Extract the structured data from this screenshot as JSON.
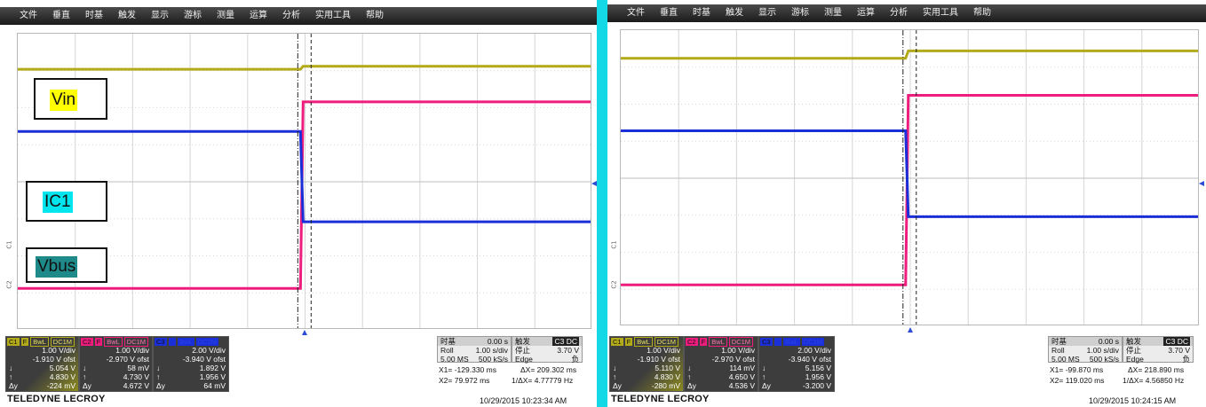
{
  "menu": [
    "文件",
    "垂直",
    "时基",
    "触发",
    "显示",
    "游标",
    "测量",
    "运算",
    "分析",
    "实用工具",
    "帮助"
  ],
  "colors": {
    "ch1": "#b2aa19",
    "ch2": "#ee1c7d",
    "ch3": "#1a2fd8",
    "divider": "#14d8e6",
    "label_yellow": "#ffff00",
    "label_cyan": "#00e5ee",
    "label_teal": "#1f8a8a"
  },
  "scopes": [
    {
      "labels": {
        "vin": "Vin",
        "ic1": "IC1",
        "vbus": "Vbus"
      },
      "markers": {
        "c1": "C1",
        "c2": "C2"
      },
      "traces": {
        "ch1": {
          "before": 0.12,
          "after": 0.11
        },
        "ch2": {
          "before": 0.86,
          "after": 0.23
        },
        "ch3": {
          "before": 0.33,
          "after": 0.635
        },
        "edge_x": 0.492
      },
      "channels": [
        {
          "id": "C1",
          "flags": [
            "F",
            "BwL",
            "DC1M"
          ],
          "vdiv": "1.00 V/div",
          "offset": "-1.910 V ofst",
          "lower": {
            "sym": "↓",
            "val": "5.054 V"
          },
          "upper": {
            "sym": "↑",
            "val": "4.830 V"
          },
          "delta": {
            "sym": "Δy",
            "val": "-224 mV"
          }
        },
        {
          "id": "C2",
          "flags": [
            "F",
            "BwL",
            "DC1M"
          ],
          "vdiv": "1.00 V/div",
          "offset": "-2.970 V ofst",
          "lower": {
            "sym": "↓",
            "val": "58 mV"
          },
          "upper": {
            "sym": "↑",
            "val": "4.730 V"
          },
          "delta": {
            "sym": "Δy",
            "val": "4.672 V"
          }
        },
        {
          "id": "C3",
          "flags": [
            "F",
            "BwL",
            "DC1M"
          ],
          "vdiv": "2.00 V/div",
          "offset": "-3.940 V ofst",
          "lower": {
            "sym": "↓",
            "val": "1.892 V"
          },
          "upper": {
            "sym": "↑",
            "val": "1.956 V"
          },
          "delta": {
            "sym": "Δy",
            "val": "64 mV"
          }
        }
      ],
      "timebase": {
        "title": "时基",
        "offset": "0.00 s",
        "mode": "Roll",
        "tdiv": "1.00 s/div",
        "samples": "5.00 MS",
        "rate": "500 kS/s"
      },
      "trigger": {
        "title": "触发",
        "src": "C3 DC",
        "state": "停止",
        "level": "3.70 V",
        "type": "Edge",
        "slope": "负"
      },
      "cursors": {
        "x1": "X1= -129.330 ms",
        "dx": "ΔX= 209.302 ms",
        "x2": "X2= 79.972 ms",
        "inv": "1/ΔX= 4.77779 Hz"
      },
      "brand": "TELEDYNE LECROY",
      "timestamp": "10/29/2015 10:23:34 AM"
    },
    {
      "labels": {},
      "markers": {
        "c1": "C1",
        "c2": "C2"
      },
      "traces": {
        "ch1": {
          "before": 0.095,
          "after": 0.07
        },
        "ch2": {
          "before": 0.86,
          "after": 0.22
        },
        "ch3": {
          "before": 0.34,
          "after": 0.63
        },
        "edge_x": 0.492
      },
      "channels": [
        {
          "id": "C1",
          "flags": [
            "F",
            "BwL",
            "DC1M"
          ],
          "vdiv": "1.00 V/div",
          "offset": "-1.910 V ofst",
          "lower": {
            "sym": "↓",
            "val": "5.110 V"
          },
          "upper": {
            "sym": "↑",
            "val": "4.830 V"
          },
          "delta": {
            "sym": "Δy",
            "val": "-280 mV"
          }
        },
        {
          "id": "C2",
          "flags": [
            "F",
            "BwL",
            "DC1M"
          ],
          "vdiv": "1.00 V/div",
          "offset": "-2.970 V ofst",
          "lower": {
            "sym": "↓",
            "val": "114 mV"
          },
          "upper": {
            "sym": "↑",
            "val": "4.650 V"
          },
          "delta": {
            "sym": "Δy",
            "val": "4.536 V"
          }
        },
        {
          "id": "C3",
          "flags": [
            "F",
            "BwL",
            "DC1M"
          ],
          "vdiv": "2.00 V/div",
          "offset": "-3.940 V ofst",
          "lower": {
            "sym": "↓",
            "val": "5.156 V"
          },
          "upper": {
            "sym": "↑",
            "val": "1.956 V"
          },
          "delta": {
            "sym": "Δy",
            "val": "-3.200 V"
          }
        }
      ],
      "timebase": {
        "title": "时基",
        "offset": "0.00 s",
        "mode": "Roll",
        "tdiv": "1.00 s/div",
        "samples": "5.00 MS",
        "rate": "500 kS/s"
      },
      "trigger": {
        "title": "触发",
        "src": "C3 DC",
        "state": "停止",
        "level": "3.70 V",
        "type": "Edge",
        "slope": "负"
      },
      "cursors": {
        "x1": "X1= -99.870 ms",
        "dx": "ΔX= 218.890 ms",
        "x2": "X2= 119.020 ms",
        "inv": "1/ΔX= 4.56850 Hz"
      },
      "brand": "TELEDYNE LECROY",
      "timestamp": "10/29/2015 10:24:15 AM"
    }
  ]
}
